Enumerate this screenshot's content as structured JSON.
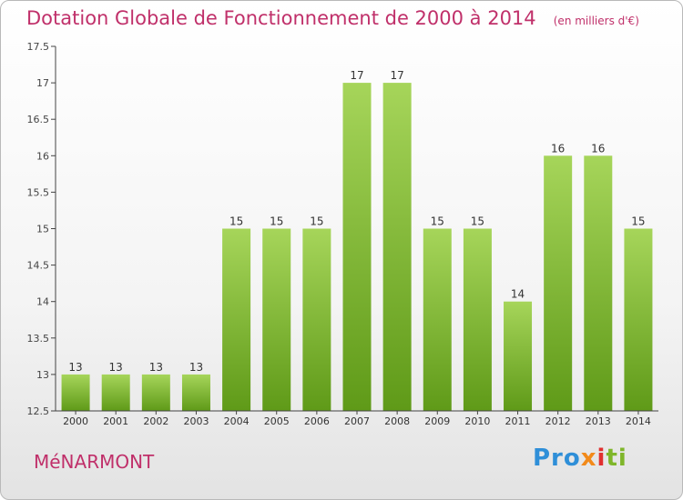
{
  "header": {
    "title": "Dotation Globale de Fonctionnement de 2000 à 2014",
    "unit": "(en milliers d'€)"
  },
  "footer": {
    "commune": "MéNARMONT",
    "brand": {
      "p1": "Pro",
      "p2": "x",
      "p3": "i",
      "p4": "ti"
    }
  },
  "colors": {
    "accent": "#c0306a",
    "bar_light": "#a6d55a",
    "bar_dark": "#5f9a18"
  },
  "chart_data": {
    "type": "bar",
    "categories": [
      "2000",
      "2001",
      "2002",
      "2003",
      "2004",
      "2005",
      "2006",
      "2007",
      "2008",
      "2009",
      "2010",
      "2011",
      "2012",
      "2013",
      "2014"
    ],
    "values": [
      13,
      13,
      13,
      13,
      15,
      15,
      15,
      17,
      17,
      15,
      15,
      14,
      16,
      16,
      15
    ],
    "title": "Dotation Globale de Fonctionnement de 2000 à 2014",
    "ylim": [
      12.5,
      17.5
    ],
    "yticks": [
      "12.5",
      "13",
      "13.5",
      "14",
      "14.5",
      "15",
      "15.5",
      "16",
      "16.5",
      "17",
      "17.5"
    ],
    "grid": false
  }
}
